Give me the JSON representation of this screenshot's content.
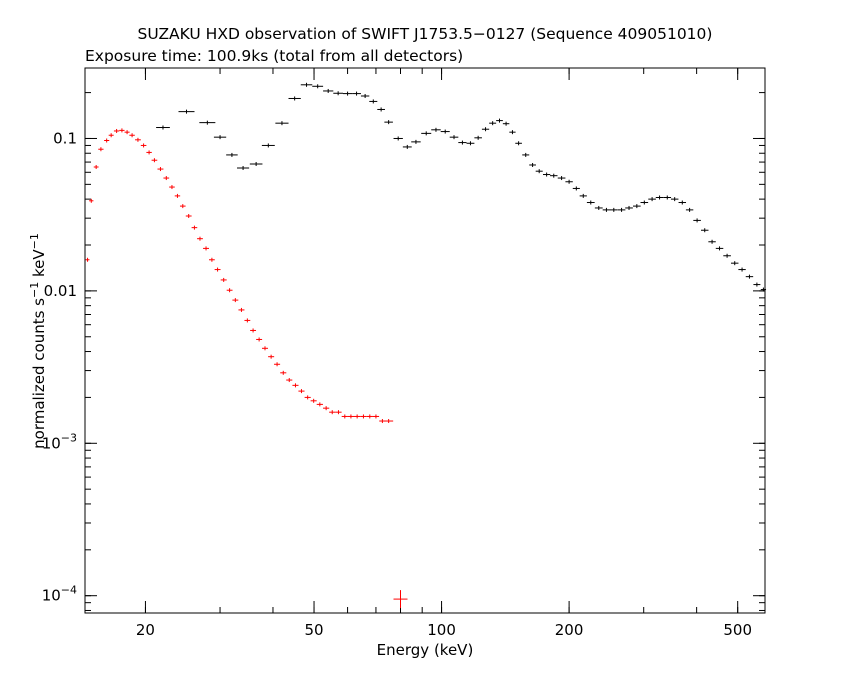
{
  "chart_data": {
    "type": "scatter",
    "title": "SUZAKU HXD observation of SWIFT J1753.5−0127 (Sequence 409051010)",
    "subtitle": "Exposure time: 100.9ks (total from all detectors)",
    "xlabel": "Energy (keV)",
    "ylabel_main": "normalized counts s",
    "ylabel_sup1": "−1",
    "ylabel_mid": " keV",
    "ylabel_sup2": "−1",
    "x_scale": "log",
    "y_scale": "log",
    "xlim": [
      14.4,
      580
    ],
    "ylim": [
      7.7e-05,
      0.29
    ],
    "x_ticks": [
      {
        "value": 20,
        "label": "20"
      },
      {
        "value": 50,
        "label": "50"
      },
      {
        "value": 100,
        "label": "100"
      },
      {
        "value": 200,
        "label": "200"
      },
      {
        "value": 500,
        "label": "500"
      }
    ],
    "y_ticks": [
      {
        "value": 0.1,
        "label": "0.1"
      },
      {
        "value": 0.01,
        "label": "0.01"
      },
      {
        "value": 0.001,
        "label_base": "10",
        "label_exp": "−3"
      },
      {
        "value": 0.0001,
        "label_base": "10",
        "label_exp": "−4"
      }
    ],
    "series": [
      {
        "color": "#ff0000",
        "points": [
          [
            14.6,
            0.016
          ],
          [
            14.9,
            0.039
          ],
          [
            15.3,
            0.065
          ],
          [
            15.7,
            0.085
          ],
          [
            16.2,
            0.097
          ],
          [
            16.6,
            0.105
          ],
          [
            17.1,
            0.112
          ],
          [
            17.6,
            0.113
          ],
          [
            18.1,
            0.11
          ],
          [
            18.6,
            0.105
          ],
          [
            19.2,
            0.098
          ],
          [
            19.8,
            0.09
          ],
          [
            20.4,
            0.081
          ],
          [
            21.0,
            0.072
          ],
          [
            21.7,
            0.063
          ],
          [
            22.4,
            0.055
          ],
          [
            23.1,
            0.048
          ],
          [
            23.8,
            0.042
          ],
          [
            24.5,
            0.036
          ],
          [
            25.3,
            0.031
          ],
          [
            26.1,
            0.026
          ],
          [
            26.9,
            0.022
          ],
          [
            27.8,
            0.019
          ],
          [
            28.7,
            0.016
          ],
          [
            29.6,
            0.0138
          ],
          [
            30.6,
            0.0118
          ],
          [
            31.6,
            0.0101
          ],
          [
            32.6,
            0.0087
          ],
          [
            33.7,
            0.0075
          ],
          [
            34.8,
            0.0064
          ],
          [
            35.9,
            0.0055
          ],
          [
            37.1,
            0.0048
          ],
          [
            38.3,
            0.0042
          ],
          [
            39.6,
            0.0037
          ],
          [
            40.9,
            0.0033
          ],
          [
            42.3,
            0.0029
          ],
          [
            43.7,
            0.0026
          ],
          [
            45.2,
            0.0024
          ],
          [
            46.7,
            0.0022
          ],
          [
            48.3,
            0.002
          ],
          [
            49.9,
            0.0019
          ],
          [
            51.6,
            0.0018
          ],
          [
            53.4,
            0.0017
          ],
          [
            55.2,
            0.0016
          ],
          [
            57.1,
            0.0016
          ],
          [
            59.1,
            0.0015
          ],
          [
            61.1,
            0.0015
          ],
          [
            63.2,
            0.0015
          ],
          [
            65.4,
            0.0015
          ],
          [
            67.7,
            0.0015
          ],
          [
            70.0,
            0.0015
          ],
          [
            72.5,
            0.0014
          ],
          [
            75.0,
            0.0014
          ],
          [
            80.0,
            9.5e-05
          ]
        ]
      },
      {
        "color": "#000000",
        "points": [
          [
            22.0,
            0.118
          ],
          [
            25.0,
            0.15
          ],
          [
            28.0,
            0.127
          ],
          [
            30.0,
            0.102
          ],
          [
            32.0,
            0.078
          ],
          [
            34.0,
            0.064
          ],
          [
            36.5,
            0.068
          ],
          [
            39.0,
            0.09
          ],
          [
            42.0,
            0.126
          ],
          [
            45.0,
            0.183
          ],
          [
            48.0,
            0.225
          ],
          [
            51.0,
            0.22
          ],
          [
            54.0,
            0.205
          ],
          [
            57.0,
            0.198
          ],
          [
            60.0,
            0.197
          ],
          [
            63.0,
            0.197
          ],
          [
            66.0,
            0.19
          ],
          [
            69.0,
            0.175
          ],
          [
            72.0,
            0.155
          ],
          [
            75.0,
            0.128
          ],
          [
            79.0,
            0.1
          ],
          [
            83.0,
            0.088
          ],
          [
            87.0,
            0.095
          ],
          [
            92.0,
            0.108
          ],
          [
            97.0,
            0.114
          ],
          [
            102.0,
            0.111
          ],
          [
            107.0,
            0.102
          ],
          [
            112.0,
            0.094
          ],
          [
            117.0,
            0.093
          ],
          [
            122.0,
            0.101
          ],
          [
            127.0,
            0.115
          ],
          [
            132.0,
            0.126
          ],
          [
            137.0,
            0.131
          ],
          [
            142.0,
            0.125
          ],
          [
            147.0,
            0.11
          ],
          [
            152.0,
            0.093
          ],
          [
            158.0,
            0.078
          ],
          [
            164.0,
            0.067
          ],
          [
            170.0,
            0.061
          ],
          [
            177.0,
            0.058
          ],
          [
            184.0,
            0.057
          ],
          [
            192.0,
            0.055
          ],
          [
            200.0,
            0.052
          ],
          [
            208.0,
            0.047
          ],
          [
            216.0,
            0.042
          ],
          [
            225.0,
            0.038
          ],
          [
            235.0,
            0.035
          ],
          [
            245.0,
            0.034
          ],
          [
            255.0,
            0.034
          ],
          [
            266.0,
            0.034
          ],
          [
            277.0,
            0.035
          ],
          [
            289.0,
            0.036
          ],
          [
            301.0,
            0.038
          ],
          [
            314.0,
            0.04
          ],
          [
            327.0,
            0.041
          ],
          [
            341.0,
            0.041
          ],
          [
            355.0,
            0.04
          ],
          [
            370.0,
            0.038
          ],
          [
            385.0,
            0.034
          ],
          [
            401.0,
            0.029
          ],
          [
            418.0,
            0.025
          ],
          [
            435.0,
            0.021
          ],
          [
            453.0,
            0.019
          ],
          [
            472.0,
            0.017
          ],
          [
            492.0,
            0.0152
          ],
          [
            512.0,
            0.0138
          ],
          [
            533.0,
            0.0124
          ],
          [
            555.0,
            0.011
          ],
          [
            575.0,
            0.0102
          ]
        ]
      }
    ]
  }
}
